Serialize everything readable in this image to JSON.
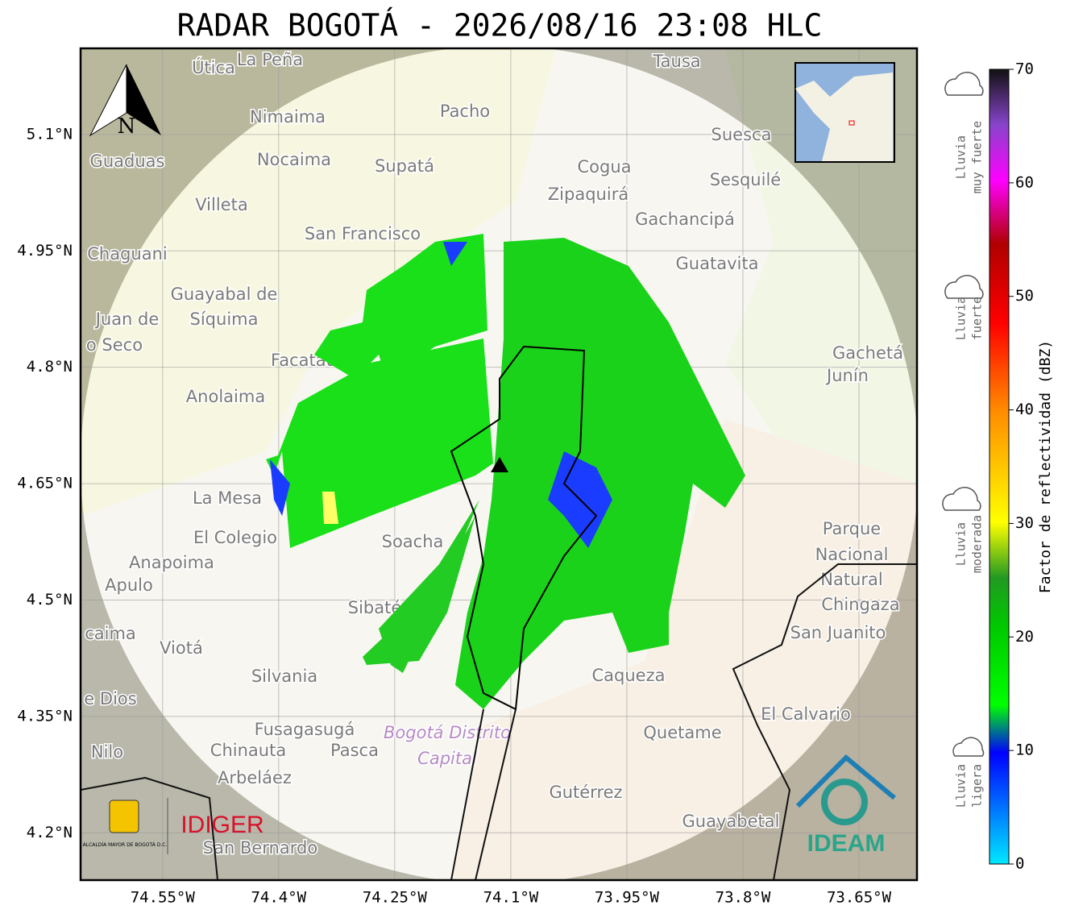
{
  "title": "RADAR BOGOTÁ - 2026/08/16 23:08 HLC",
  "map": {
    "lat_lim": [
      4.139,
      5.211
    ],
    "lon_lim": [
      -74.656,
      -73.575
    ],
    "lat_ticks": [
      {
        "value": 5.1,
        "label": "5.1°N"
      },
      {
        "value": 4.95,
        "label": "4.95°N"
      },
      {
        "value": 4.8,
        "label": "4.8°N"
      },
      {
        "value": 4.65,
        "label": "4.65°N"
      },
      {
        "value": 4.5,
        "label": "4.5°N"
      },
      {
        "value": 4.35,
        "label": "4.35°N"
      },
      {
        "value": 4.2,
        "label": "4.2°N"
      }
    ],
    "lon_ticks": [
      {
        "value": -74.55,
        "label": "74.55°W"
      },
      {
        "value": -74.4,
        "label": "74.4°W"
      },
      {
        "value": -74.25,
        "label": "74.25°W"
      },
      {
        "value": -74.1,
        "label": "74.1°W"
      },
      {
        "value": -73.95,
        "label": "73.95°W"
      },
      {
        "value": -73.8,
        "label": "73.8°W"
      },
      {
        "value": -73.65,
        "label": "73.65°W"
      }
    ],
    "north": "N",
    "places": [
      "Útica",
      "La Peña",
      "Tausa",
      "Pacho",
      "Nimaima",
      "Guaduas",
      "Nocaima",
      "Supatá",
      "Cogua",
      "Suesca",
      "Sesquilé",
      "Zipaquirá",
      "Villeta",
      "Gachancipá",
      "San Francisco",
      "Chaguani",
      "Guatavita",
      "Guayabal de",
      "Síquima",
      "Juan de",
      "o Seco",
      "Facatativá",
      "Gachetá",
      "Junín",
      "Anolaima",
      "La Mesa",
      "El Colegio",
      "Anapoima",
      "Apulo",
      "Parque",
      "Nacional",
      "Natural",
      "Chingaza",
      "San Juanito",
      "Sibaté",
      "caima",
      "Viotá",
      "Silvania",
      "Caqueza",
      "e Dios",
      "El Calvario",
      "Fusagasugá",
      "Quetame",
      "Nilo",
      "Chinauta",
      "Pasca",
      "Arbeláez",
      "Gutérrez",
      "Guayabetal",
      "San Bernardo",
      "Soacha",
      "Bogotá Distrito",
      "Capital"
    ],
    "logos": {
      "alcaldia": "ALCALDÍA MAYOR DE BOGOTÁ D.C.",
      "idiger": "IDIGER",
      "ideam": "IDEAM"
    }
  },
  "colorbar": {
    "label": "Factor de reflectividad (dBZ)",
    "lim": [
      0,
      70
    ],
    "ticks": [
      0,
      10,
      20,
      30,
      40,
      50,
      60,
      70
    ],
    "categories": [
      [
        "Lluvia",
        "muy fuerte"
      ],
      [
        "Lluvia",
        "fuerte"
      ],
      [
        "Lluvia",
        "moderada"
      ],
      [
        "Lluvia",
        "ligera"
      ]
    ]
  }
}
